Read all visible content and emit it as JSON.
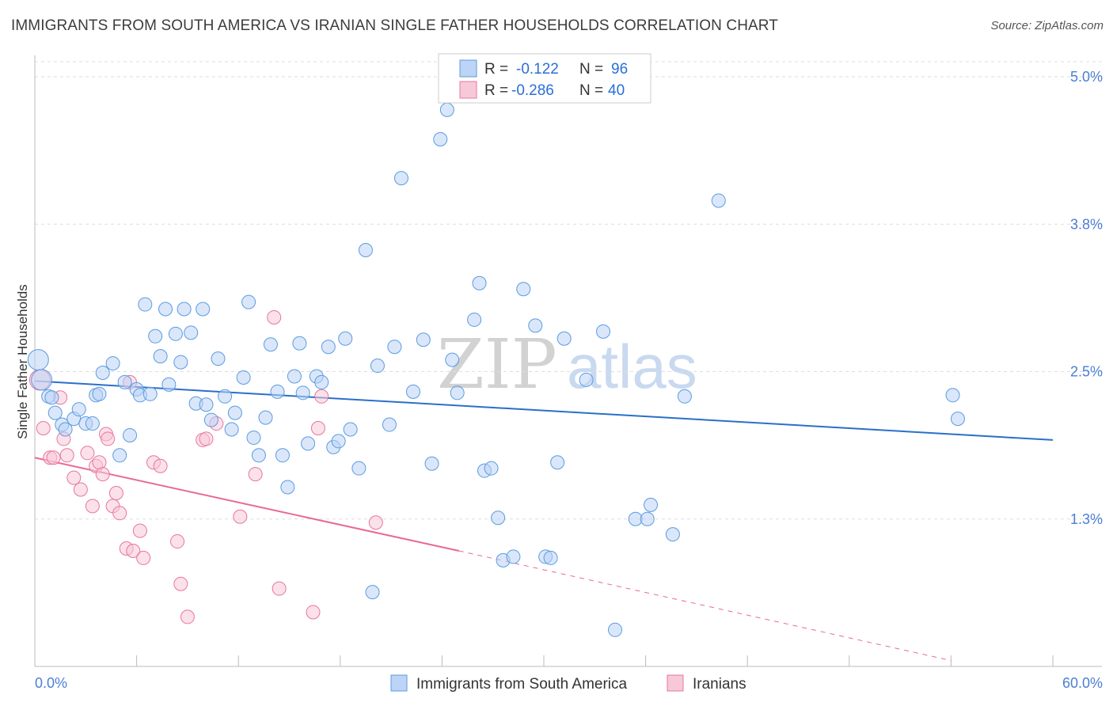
{
  "title": "IMMIGRANTS FROM SOUTH AMERICA VS IRANIAN SINGLE FATHER HOUSEHOLDS CORRELATION CHART",
  "source": "Source: ZipAtlas.com",
  "watermark": {
    "zip": "ZIP",
    "atlas": "atlas"
  },
  "chart_data": {
    "type": "scatter",
    "title": "IMMIGRANTS FROM SOUTH AMERICA VS IRANIAN SINGLE FATHER HOUSEHOLDS CORRELATION CHART",
    "xlabel": "",
    "ylabel": "Single Father Households",
    "xlim": [
      0,
      60
    ],
    "ylim": [
      0,
      5.2
    ],
    "x_tick_labels": [
      "0.0%",
      "60.0%"
    ],
    "y_ticks": [
      1.25,
      2.5,
      3.75,
      5.0
    ],
    "y_tick_labels": [
      "1.3%",
      "2.5%",
      "3.8%",
      "5.0%"
    ],
    "grid": true,
    "legend_position": "top-center",
    "colors": {
      "blue": "#5b9be0",
      "blue_fill": "#bcd4f5",
      "pink": "#e8769c",
      "pink_fill": "#f7c9d8",
      "blue_line": "#2a6fc9",
      "pink_line": "#e8699a"
    },
    "series": [
      {
        "name": "Immigrants from South America",
        "color": "blue",
        "R": "-0.122",
        "N": "96",
        "trend": {
          "x0": 0,
          "y0": 2.42,
          "x1": 60,
          "y1": 1.92
        },
        "points": [
          [
            0.2,
            2.6
          ],
          [
            0.4,
            2.43
          ],
          [
            0.8,
            2.29
          ],
          [
            1.0,
            2.28
          ],
          [
            1.2,
            2.15
          ],
          [
            1.6,
            2.05
          ],
          [
            1.8,
            2.01
          ],
          [
            2.3,
            2.1
          ],
          [
            2.6,
            2.18
          ],
          [
            3.0,
            2.06
          ],
          [
            3.4,
            2.06
          ],
          [
            3.6,
            2.3
          ],
          [
            3.8,
            2.31
          ],
          [
            4.0,
            2.49
          ],
          [
            4.6,
            2.57
          ],
          [
            5.0,
            1.79
          ],
          [
            5.3,
            2.41
          ],
          [
            5.6,
            1.96
          ],
          [
            6.0,
            2.35
          ],
          [
            6.2,
            2.3
          ],
          [
            6.5,
            3.07
          ],
          [
            6.8,
            2.31
          ],
          [
            7.1,
            2.8
          ],
          [
            7.4,
            2.63
          ],
          [
            7.7,
            3.03
          ],
          [
            7.9,
            2.39
          ],
          [
            8.3,
            2.82
          ],
          [
            8.6,
            2.58
          ],
          [
            8.8,
            3.03
          ],
          [
            9.2,
            2.83
          ],
          [
            9.5,
            2.23
          ],
          [
            9.9,
            3.03
          ],
          [
            10.1,
            2.22
          ],
          [
            10.4,
            2.09
          ],
          [
            10.8,
            2.61
          ],
          [
            11.2,
            2.29
          ],
          [
            11.6,
            2.01
          ],
          [
            11.8,
            2.15
          ],
          [
            12.3,
            2.45
          ],
          [
            12.6,
            3.09
          ],
          [
            12.9,
            1.94
          ],
          [
            13.2,
            1.79
          ],
          [
            13.6,
            2.11
          ],
          [
            13.9,
            2.73
          ],
          [
            14.3,
            2.33
          ],
          [
            14.6,
            1.79
          ],
          [
            14.9,
            1.52
          ],
          [
            15.3,
            2.46
          ],
          [
            15.6,
            2.74
          ],
          [
            15.8,
            2.32
          ],
          [
            16.1,
            1.89
          ],
          [
            16.6,
            2.46
          ],
          [
            16.9,
            2.41
          ],
          [
            17.3,
            2.71
          ],
          [
            17.6,
            1.86
          ],
          [
            17.9,
            1.91
          ],
          [
            18.3,
            2.78
          ],
          [
            18.6,
            2.01
          ],
          [
            19.1,
            1.68
          ],
          [
            19.5,
            3.53
          ],
          [
            19.9,
            0.63
          ],
          [
            20.2,
            2.55
          ],
          [
            20.9,
            2.05
          ],
          [
            21.2,
            2.71
          ],
          [
            21.6,
            4.14
          ],
          [
            22.3,
            2.33
          ],
          [
            22.9,
            2.77
          ],
          [
            23.4,
            1.72
          ],
          [
            23.9,
            4.47
          ],
          [
            24.3,
            4.72
          ],
          [
            24.6,
            2.6
          ],
          [
            24.9,
            2.32
          ],
          [
            25.9,
            2.94
          ],
          [
            26.2,
            3.25
          ],
          [
            26.5,
            1.66
          ],
          [
            26.9,
            1.68
          ],
          [
            27.3,
            1.26
          ],
          [
            27.6,
            0.9
          ],
          [
            28.2,
            0.93
          ],
          [
            28.8,
            3.2
          ],
          [
            29.5,
            2.89
          ],
          [
            30.1,
            0.93
          ],
          [
            30.4,
            0.92
          ],
          [
            30.8,
            1.73
          ],
          [
            31.2,
            2.78
          ],
          [
            32.5,
            2.43
          ],
          [
            33.5,
            2.84
          ],
          [
            34.2,
            0.31
          ],
          [
            35.4,
            1.25
          ],
          [
            36.1,
            1.25
          ],
          [
            36.3,
            1.37
          ],
          [
            37.6,
            1.12
          ],
          [
            38.3,
            2.29
          ],
          [
            40.3,
            3.95
          ],
          [
            54.1,
            2.3
          ],
          [
            54.4,
            2.1
          ]
        ]
      },
      {
        "name": "Iranians",
        "color": "pink",
        "R": "-0.286",
        "N": "40",
        "trend": {
          "x0": 0,
          "y0": 1.77,
          "x1": 25,
          "y1": 0.98
        },
        "trend_dashed_to": {
          "x": 54,
          "y": 0.05
        },
        "points": [
          [
            0.3,
            2.43
          ],
          [
            0.5,
            2.02
          ],
          [
            0.9,
            1.77
          ],
          [
            1.1,
            1.77
          ],
          [
            1.5,
            2.28
          ],
          [
            1.7,
            1.93
          ],
          [
            1.9,
            1.79
          ],
          [
            2.3,
            1.6
          ],
          [
            2.7,
            1.5
          ],
          [
            3.1,
            1.81
          ],
          [
            3.4,
            1.36
          ],
          [
            3.6,
            1.7
          ],
          [
            3.8,
            1.73
          ],
          [
            4.0,
            1.63
          ],
          [
            4.2,
            1.97
          ],
          [
            4.3,
            1.93
          ],
          [
            4.6,
            1.36
          ],
          [
            4.8,
            1.47
          ],
          [
            5.0,
            1.3
          ],
          [
            5.4,
            1.0
          ],
          [
            5.6,
            2.41
          ],
          [
            5.8,
            0.98
          ],
          [
            6.2,
            1.15
          ],
          [
            6.4,
            0.92
          ],
          [
            7.0,
            1.73
          ],
          [
            7.4,
            1.7
          ],
          [
            8.4,
            1.06
          ],
          [
            8.6,
            0.7
          ],
          [
            9.0,
            0.42
          ],
          [
            9.9,
            1.92
          ],
          [
            10.1,
            1.93
          ],
          [
            10.7,
            2.06
          ],
          [
            12.1,
            1.27
          ],
          [
            13.0,
            1.63
          ],
          [
            14.1,
            2.96
          ],
          [
            14.4,
            0.66
          ],
          [
            16.4,
            0.46
          ],
          [
            16.7,
            2.02
          ],
          [
            16.9,
            2.29
          ],
          [
            20.1,
            1.22
          ]
        ]
      }
    ]
  },
  "legend": {
    "r_label": "R =",
    "n_label": "N =",
    "series": [
      {
        "r": "-0.122",
        "n": "96"
      },
      {
        "r": "-0.286",
        "n": "40"
      }
    ]
  },
  "bottom_legend": [
    "Immigrants from South America",
    "Iranians"
  ]
}
